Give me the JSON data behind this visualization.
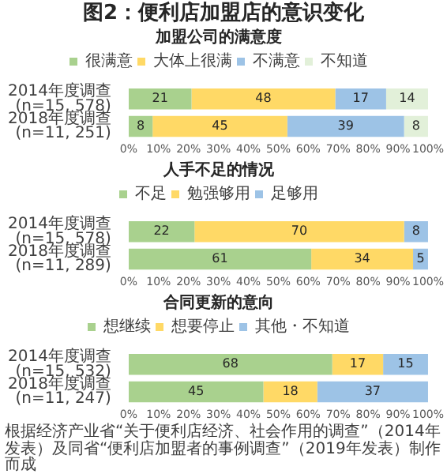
{
  "chart_data": [
    {
      "type": "bar",
      "title": "图2：便利店加盟店的意识变化",
      "subtitle": "加盟公司的满意度",
      "orientation": "horizontal",
      "stacked": true,
      "categories": [
        "2014年度调查\n(n=15, 578)",
        "2018年度调查\n(n=11, 251)"
      ],
      "series": [
        {
          "name": "很满意",
          "color": "#a9d18e",
          "values": [
            21,
            8
          ]
        },
        {
          "name": "大体上很满",
          "color": "#ffd966",
          "values": [
            48,
            45
          ]
        },
        {
          "name": "不满意",
          "color": "#9dc3e6",
          "values": [
            17,
            39
          ]
        },
        {
          "name": "不知道",
          "color": "#e2f0d9",
          "values": [
            14,
            8
          ]
        }
      ],
      "xlim": [
        0,
        100
      ],
      "xticks": [
        {
          "value": 0,
          "label": "0%"
        },
        {
          "value": 10,
          "label": "10%"
        },
        {
          "value": 20,
          "label": "20%"
        },
        {
          "value": 30,
          "label": "30%"
        },
        {
          "value": 40,
          "label": "40%"
        },
        {
          "value": 50,
          "label": "50%"
        },
        {
          "value": 60,
          "label": "60%"
        },
        {
          "value": 70,
          "label": "70%"
        },
        {
          "value": 80,
          "label": "80%"
        },
        {
          "value": 90,
          "label": "90%"
        },
        {
          "value": 100,
          "label": "100%"
        }
      ],
      "legend": "top",
      "data_labels": true,
      "grid": false
    },
    {
      "type": "bar",
      "title": "人手不足的情况",
      "orientation": "horizontal",
      "stacked": true,
      "categories": [
        "2014年度调查\n(n=15, 578)",
        "2018年度调查\n(n=11, 289)"
      ],
      "series": [
        {
          "name": "不足",
          "color": "#a9d18e",
          "values": [
            22,
            61
          ]
        },
        {
          "name": "勉强够用",
          "color": "#ffd966",
          "values": [
            70,
            34
          ]
        },
        {
          "name": "足够用",
          "color": "#9dc3e6",
          "values": [
            8,
            5
          ]
        }
      ],
      "xlim": [
        0,
        100
      ],
      "xticks": [
        {
          "value": 0,
          "label": "0%"
        },
        {
          "value": 10,
          "label": "10%"
        },
        {
          "value": 20,
          "label": "20%"
        },
        {
          "value": 30,
          "label": "30%"
        },
        {
          "value": 40,
          "label": "40%"
        },
        {
          "value": 50,
          "label": "50%"
        },
        {
          "value": 60,
          "label": "60%"
        },
        {
          "value": 70,
          "label": "70%"
        },
        {
          "value": 80,
          "label": "80%"
        },
        {
          "value": 90,
          "label": "90%"
        },
        {
          "value": 100,
          "label": "100%"
        }
      ],
      "legend": "top",
      "data_labels": true,
      "grid": false
    },
    {
      "type": "bar",
      "title": "合同更新的意向",
      "orientation": "horizontal",
      "stacked": true,
      "categories": [
        "2014年度调查\n(n=15, 532)",
        "2018年度调查\n(n=11, 247)"
      ],
      "series": [
        {
          "name": "想继续",
          "color": "#a9d18e",
          "values": [
            68,
            45
          ]
        },
        {
          "name": "想要停止",
          "color": "#ffd966",
          "values": [
            17,
            18
          ]
        },
        {
          "name": "其他・不知道",
          "color": "#9dc3e6",
          "values": [
            15,
            37
          ]
        }
      ],
      "xlim": [
        0,
        100
      ],
      "xticks": [
        {
          "value": 0,
          "label": "0%"
        },
        {
          "value": 10,
          "label": "10%"
        },
        {
          "value": 20,
          "label": "20%"
        },
        {
          "value": 30,
          "label": "30%"
        },
        {
          "value": 40,
          "label": "40%"
        },
        {
          "value": 50,
          "label": "50%"
        },
        {
          "value": 60,
          "label": "60%"
        },
        {
          "value": 70,
          "label": "70%"
        },
        {
          "value": 80,
          "label": "80%"
        },
        {
          "value": 90,
          "label": "90%"
        },
        {
          "value": 100,
          "label": "100%"
        }
      ],
      "legend": "top",
      "data_labels": true,
      "grid": false,
      "annotations": [
        "根据经济产业省“关于便利店经济、社会作用的调查”（2014年发表）及同省“便利店加盟者的事例调查”（2019年发表）制作而成"
      ]
    }
  ]
}
